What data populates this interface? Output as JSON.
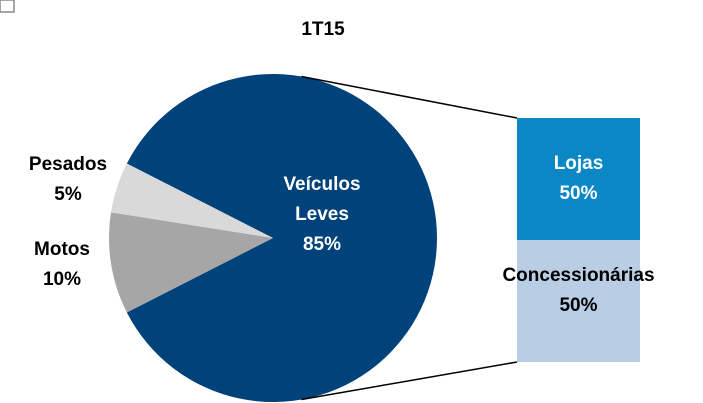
{
  "chart_data": {
    "type": "bar-of-pie",
    "title": "1T15",
    "categories": [
      "Veículos Leves",
      "Motos",
      "Pesados"
    ],
    "values": [
      85,
      10,
      5
    ],
    "value_labels": [
      "85%",
      "10%",
      "5%"
    ],
    "colors": [
      "#00427a",
      "#a6a6a6",
      "#d9d9d9"
    ],
    "bar": {
      "categories": [
        "Lojas",
        "Concessionárias"
      ],
      "values": [
        50,
        50
      ],
      "value_labels": [
        "50%",
        "50%"
      ],
      "colors": [
        "#0a87c4",
        "#b9cde5"
      ]
    }
  }
}
